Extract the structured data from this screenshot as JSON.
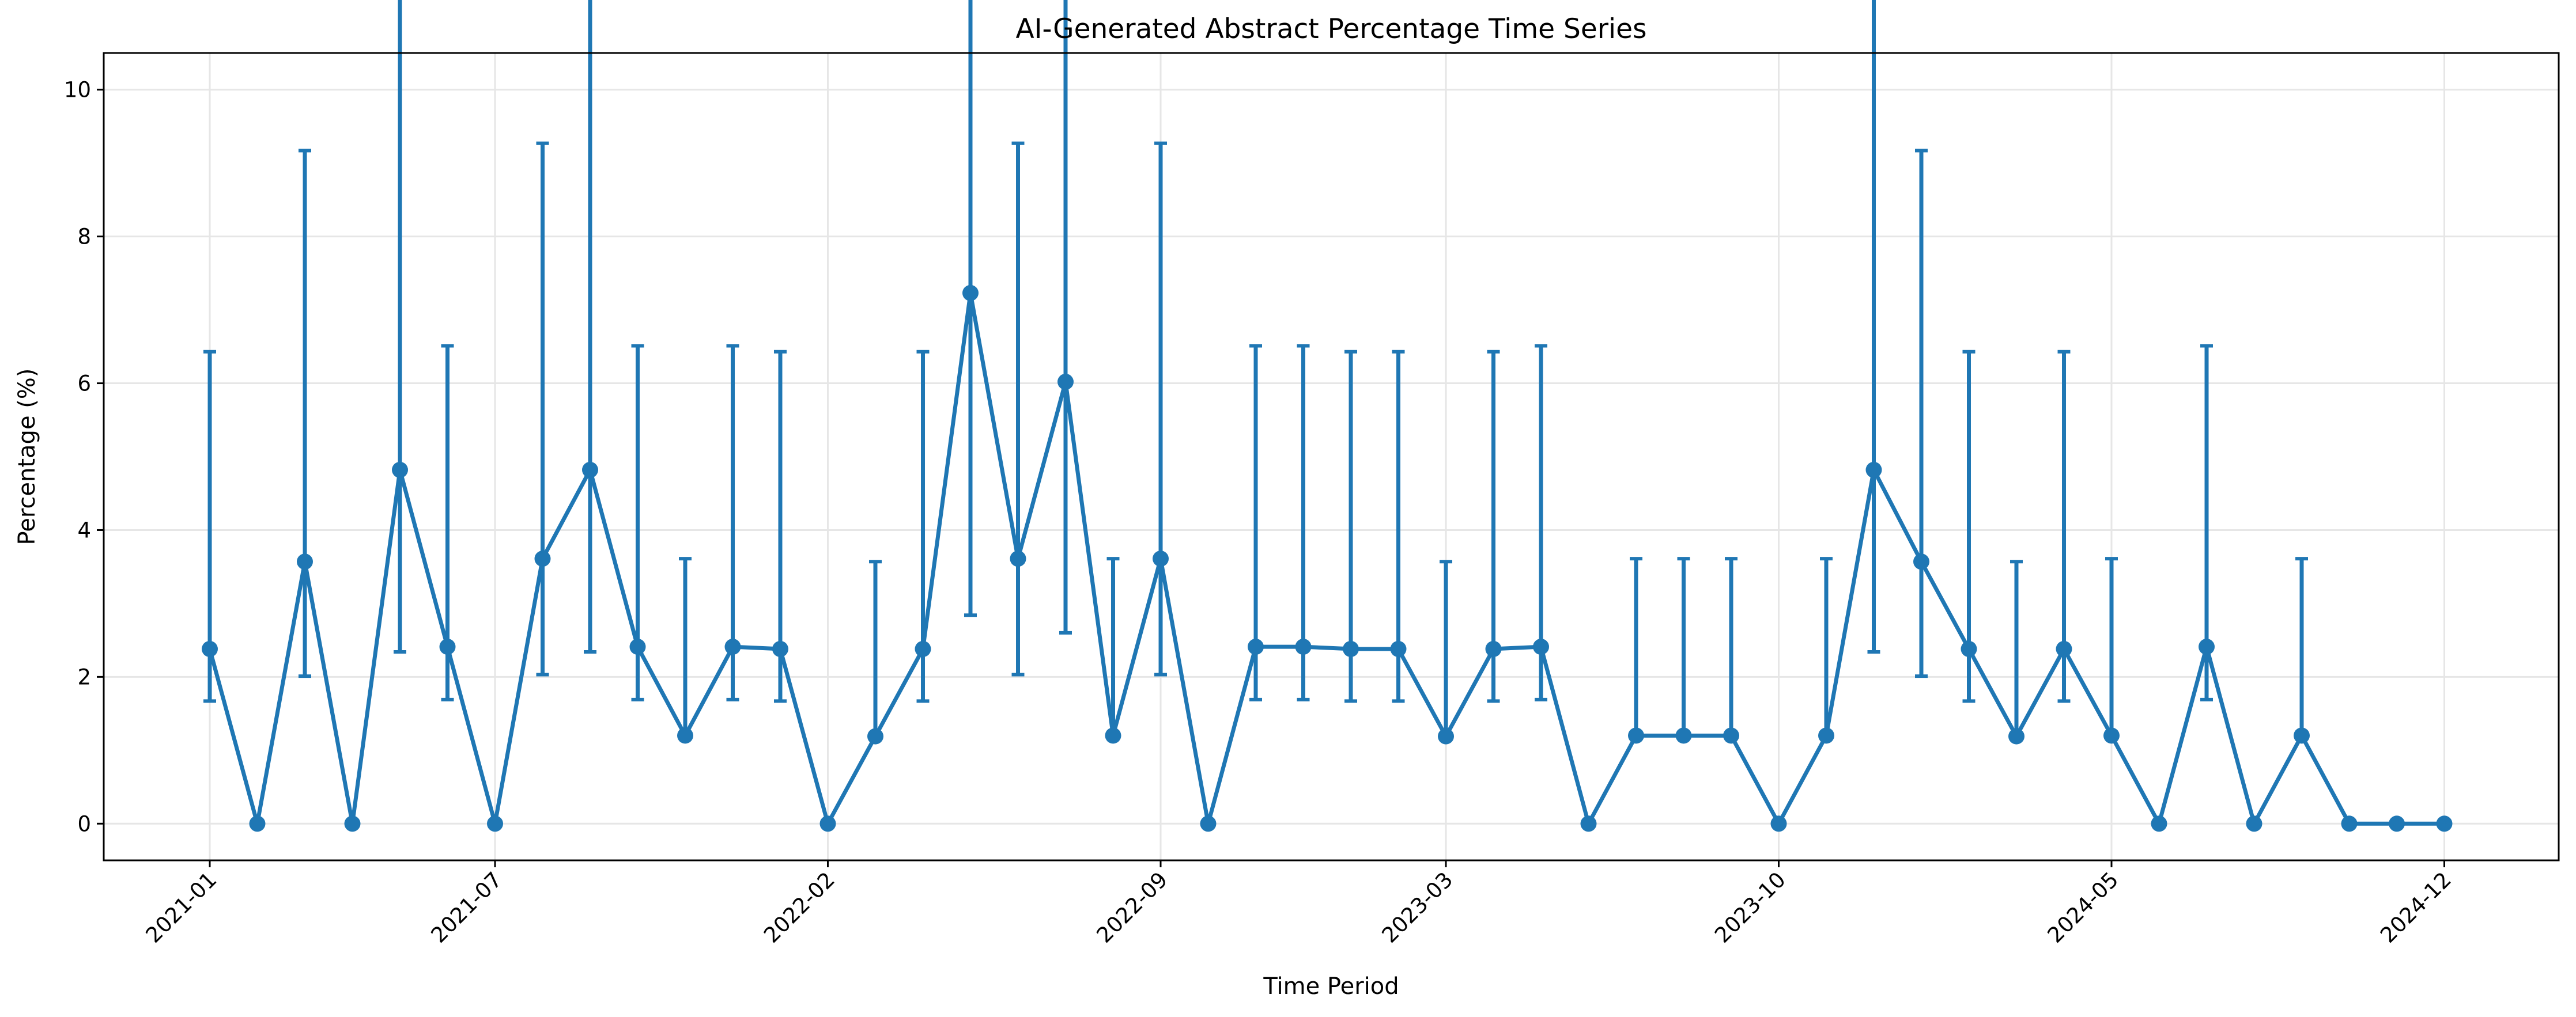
{
  "chart_data": {
    "type": "line",
    "title": "AI-Generated Abstract Percentage Time Series",
    "xlabel": "Time Period",
    "ylabel": "Percentage (%)",
    "x_tick_labels": [
      "2021-01",
      "2021-07",
      "2022-02",
      "2022-09",
      "2023-03",
      "2023-10",
      "2024-05",
      "2024-12"
    ],
    "y_tick_labels": [
      "0",
      "2",
      "4",
      "6",
      "8",
      "10"
    ],
    "ylim": [
      -0.5,
      10.5
    ],
    "grid": true,
    "error_bars": true,
    "color": "#1f77b4",
    "x": [
      "2021-01",
      "2021-02",
      "2021-03",
      "2021-04",
      "2021-05",
      "2021-06",
      "2021-07",
      "2021-08",
      "2021-09",
      "2021-10",
      "2021-11",
      "2021-12",
      "2022-01",
      "2022-02",
      "2022-03",
      "2022-04",
      "2022-05",
      "2022-06",
      "2022-07",
      "2022-08",
      "2022-09",
      "2022-10",
      "2022-11",
      "2022-12",
      "2023-01",
      "2023-02",
      "2023-03",
      "2023-04",
      "2023-05",
      "2023-06",
      "2023-07",
      "2023-08",
      "2023-09",
      "2023-10",
      "2023-11",
      "2023-12",
      "2024-01",
      "2024-02",
      "2024-03",
      "2024-04",
      "2024-05",
      "2024-06",
      "2024-07",
      "2024-08",
      "2024-09",
      "2024-10",
      "2024-11",
      "2024-12"
    ],
    "values": [
      2.38,
      0,
      3.57,
      0,
      4.82,
      2.41,
      0,
      3.61,
      4.82,
      2.41,
      1.2,
      2.41,
      2.38,
      0,
      1.19,
      2.38,
      7.23,
      3.61,
      6.02,
      1.2,
      3.61,
      0,
      2.41,
      2.41,
      2.38,
      2.38,
      1.19,
      2.38,
      2.41,
      0,
      1.2,
      1.2,
      1.2,
      0,
      1.2,
      4.82,
      3.57,
      2.38,
      1.19,
      2.38,
      1.2,
      0,
      2.41,
      0,
      1.2,
      0,
      0,
      0
    ],
    "error_lower": [
      0.71,
      0,
      1.56,
      0,
      2.48,
      0.72,
      0,
      1.58,
      2.48,
      0.72,
      0.01,
      0.72,
      0.71,
      0,
      0.01,
      0.71,
      4.39,
      1.58,
      3.42,
      0.01,
      1.58,
      0,
      0.72,
      0.72,
      0.71,
      0.71,
      0.01,
      0.71,
      0.72,
      0,
      0.01,
      0.01,
      0.01,
      0,
      0.01,
      2.48,
      1.56,
      0.71,
      0.01,
      0.71,
      0.01,
      0,
      0.72,
      0,
      0.01,
      0,
      0,
      0
    ],
    "error_upper": [
      4.05,
      0,
      5.6,
      0,
      7.18,
      4.1,
      0,
      5.66,
      7.18,
      4.1,
      2.41,
      4.1,
      4.05,
      0,
      2.38,
      4.05,
      10.07,
      5.66,
      8.63,
      2.41,
      5.66,
      0,
      4.1,
      4.1,
      4.05,
      4.05,
      2.38,
      4.05,
      4.1,
      0,
      2.41,
      2.41,
      2.41,
      0,
      2.41,
      7.18,
      5.6,
      4.05,
      2.38,
      4.05,
      2.41,
      0,
      4.1,
      0,
      2.41,
      0,
      0,
      0
    ]
  }
}
